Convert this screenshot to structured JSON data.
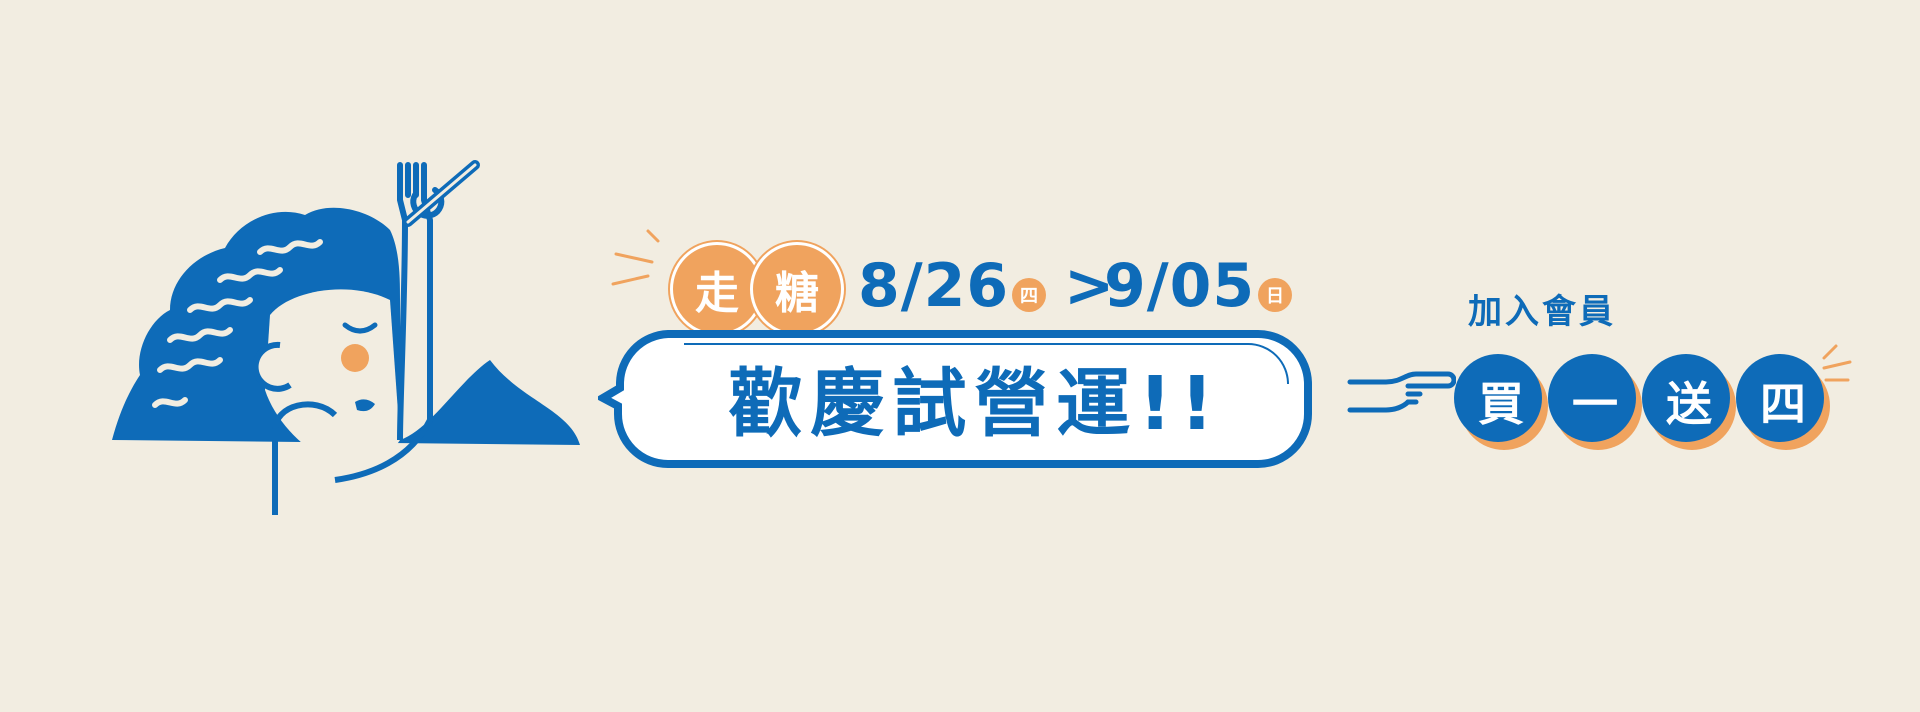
{
  "brand": {
    "char1": "走",
    "char2": "糖"
  },
  "event": {
    "start_date": "8/26",
    "start_day": "四",
    "separator": ">",
    "end_date": "9/05",
    "end_day": "日"
  },
  "headline": "歡慶試營運!!",
  "promo": {
    "member_label": "加入會員",
    "offer": [
      "買",
      "一",
      "送",
      "四"
    ]
  },
  "colors": {
    "blue": "#0e6bb8",
    "orange": "#f0a35e",
    "background": "#f2ede1"
  }
}
